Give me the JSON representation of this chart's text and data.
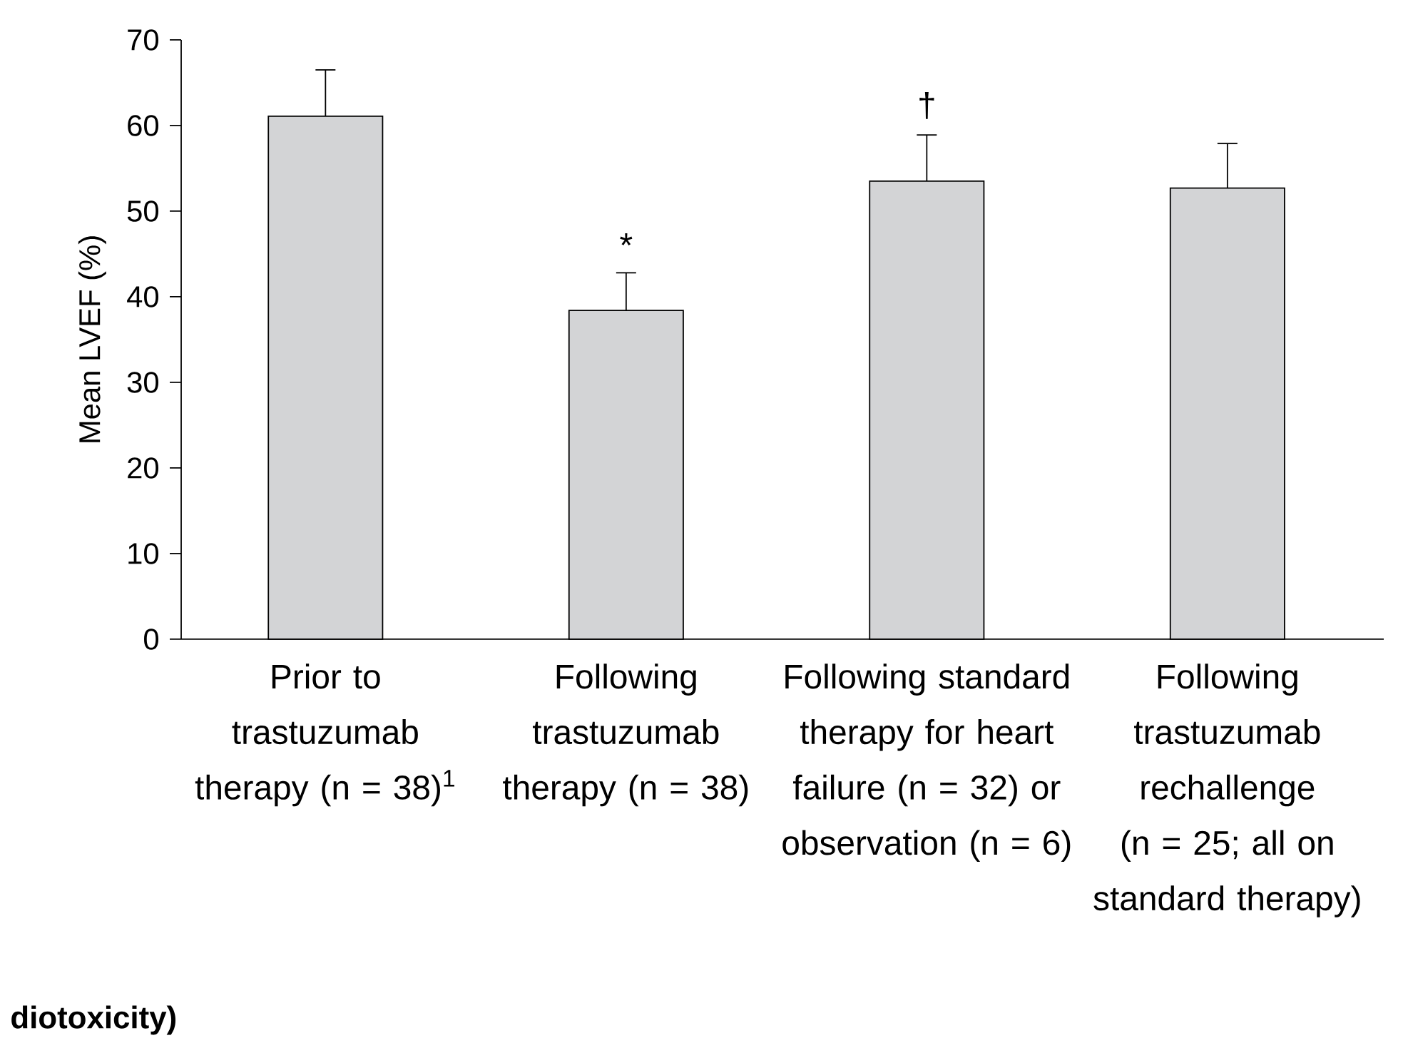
{
  "chart_data": {
    "type": "bar",
    "ylabel": "Mean LVEF (%)",
    "categories": [
      "Prior to trastuzumab therapy (n = 38)$^{1}$",
      "Following trastuzumab therapy (n = 38)",
      "Following standard therapy for heart failure (n = 32) or observation (n = 6)",
      "Following trastuzumab rechallenge (n = 25; all on standard therapy)"
    ],
    "values": [
      61.1,
      38.4,
      53.5,
      52.7
    ],
    "errors": [
      5.4,
      4.4,
      5.4,
      5.2
    ],
    "color": "#d3d4d6",
    "ylim": [
      0,
      70
    ],
    "yticks": [
      0,
      10,
      20,
      30,
      40,
      50,
      60,
      70
    ],
    "annotations": [
      {
        "text": "*",
        "x": "Following trastuzumab therapy (n = 38)",
        "y": 42.8
      },
      {
        "text": "†",
        "x": "Following standard therapy for heart failure (n = 32) or observation (n = 6)",
        "y": 58.9
      },
      "diotoxicity)"
    ]
  }
}
